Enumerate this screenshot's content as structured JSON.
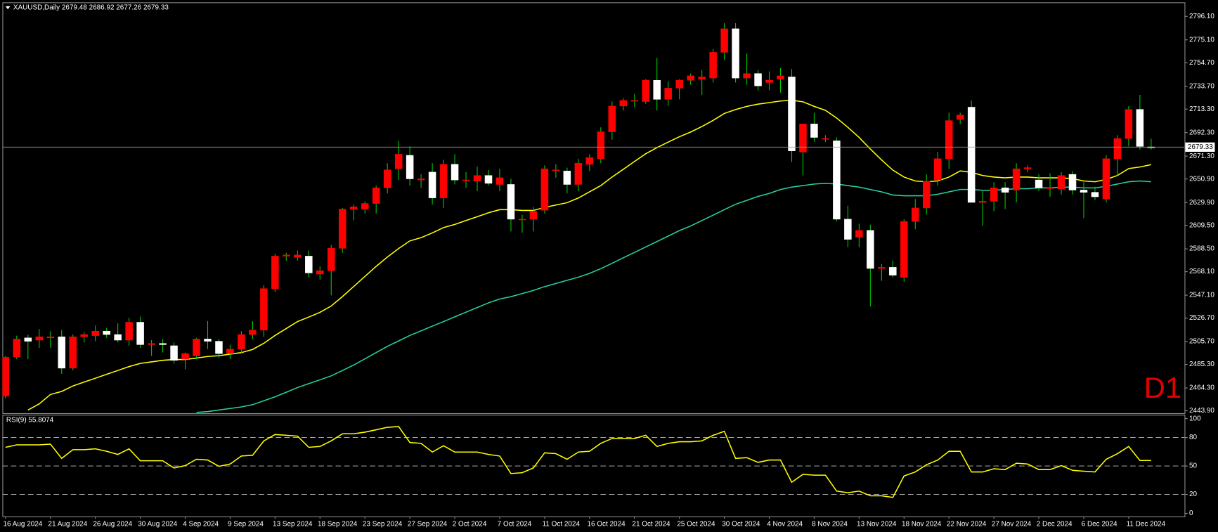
{
  "chart_data": [
    {
      "type": "candlestick",
      "title": "XAUUSD,Daily 2679.48 2686.92 2677.26 2679.33",
      "categories": [
        "16 Aug 2024",
        null,
        null,
        null,
        "21 Aug 2024",
        null,
        null,
        null,
        "26 Aug 2024",
        null,
        null,
        null,
        "30 Aug 2024",
        null,
        null,
        null,
        "4 Sep 2024",
        null,
        null,
        null,
        "9 Sep 2024",
        null,
        null,
        null,
        "13 Sep 2024",
        null,
        null,
        null,
        "18 Sep 2024",
        null,
        null,
        null,
        "23 Sep 2024",
        null,
        null,
        null,
        "27 Sep 2024",
        null,
        null,
        null,
        "2 Oct 2024",
        null,
        null,
        null,
        "7 Oct 2024",
        null,
        null,
        null,
        "11 Oct 2024",
        null,
        null,
        null,
        "16 Oct 2024",
        null,
        null,
        null,
        "21 Oct 2024",
        null,
        null,
        null,
        "25 Oct 2024",
        null,
        null,
        null,
        "30 Oct 2024",
        null,
        null,
        null,
        "4 Nov 2024",
        null,
        null,
        null,
        "8 Nov 2024",
        null,
        null,
        null,
        "13 Nov 2024",
        null,
        null,
        null,
        "18 Nov 2024",
        null,
        null,
        null,
        "22 Nov 2024",
        null,
        null,
        null,
        "27 Nov 2024",
        null,
        null,
        null,
        "2 Dec 2024",
        null,
        null,
        null,
        "6 Dec 2024",
        null,
        null,
        null,
        "11 Dec 2024",
        null,
        null
      ],
      "open": [
        2457.1,
        2492,
        2509,
        2507,
        2509,
        2510,
        2482,
        2510,
        2511,
        2515,
        2512,
        2507,
        2523,
        2503,
        2504,
        2502,
        2490,
        2493,
        2508,
        2506,
        2495,
        2499,
        2512,
        2516,
        2553,
        2582,
        2581,
        2582,
        2566,
        2569,
        2589,
        2624,
        2624,
        2629,
        2643,
        2660,
        2672,
        2650,
        2657,
        2634,
        2664,
        2650,
        2649,
        2654,
        2646,
        2646,
        2615,
        2615,
        2623,
        2659,
        2658,
        2646,
        2664,
        2669,
        2693,
        2716,
        2721,
        2720,
        2739,
        2722,
        2732,
        2739,
        2740,
        2741,
        2764,
        2785,
        2741,
        2745,
        2737,
        2740,
        2742,
        2675,
        2700,
        2687,
        2685,
        2615,
        2599,
        2605,
        2571,
        2572,
        2563,
        2613,
        2625,
        2650,
        2669,
        2704,
        2715,
        2630,
        2631,
        2643,
        2641,
        2660,
        2650,
        2643,
        2642,
        2655,
        2641,
        2639,
        2633,
        2669,
        2687,
        2713,
        2679.48
      ],
      "high": [
        2493,
        2511,
        2512,
        2517,
        2515,
        2516,
        2512,
        2514,
        2520,
        2518,
        2522,
        2527,
        2528,
        2507,
        2508,
        2505,
        2496,
        2509,
        2524,
        2508,
        2503,
        2515,
        2524,
        2556,
        2584,
        2585,
        2587,
        2587,
        2573,
        2592,
        2625,
        2628,
        2631,
        2645,
        2665,
        2685,
        2680,
        2655,
        2665,
        2668,
        2673,
        2657,
        2662,
        2659,
        2660,
        2651,
        2619,
        2626,
        2663,
        2664,
        2661,
        2669,
        2673,
        2697,
        2720,
        2723,
        2727,
        2740,
        2759,
        2738,
        2740,
        2745,
        2748,
        2767,
        2790,
        2790,
        2763,
        2748,
        2747,
        2750,
        2749,
        2700,
        2710,
        2690,
        2688,
        2627,
        2611,
        2610,
        2575,
        2578,
        2615,
        2633,
        2655,
        2675,
        2710,
        2710,
        2721,
        2640,
        2648,
        2648,
        2665,
        2663,
        2655,
        2656,
        2657,
        2658,
        2648,
        2644,
        2672,
        2690,
        2716,
        2726,
        2686.92
      ],
      "low": [
        2455,
        2490,
        2490,
        2500,
        2500,
        2477,
        2480,
        2505,
        2506,
        2509,
        2505,
        2502,
        2500,
        2493,
        2496,
        2486,
        2481,
        2490,
        2499,
        2491,
        2490,
        2495,
        2508,
        2510,
        2550,
        2578,
        2578,
        2563,
        2561,
        2547,
        2585,
        2614,
        2620,
        2620,
        2638,
        2650,
        2645,
        2643,
        2628,
        2625,
        2646,
        2643,
        2640,
        2645,
        2640,
        2604,
        2603,
        2604,
        2620,
        2652,
        2638,
        2640,
        2658,
        2665,
        2686,
        2712,
        2715,
        2718,
        2712,
        2716,
        2722,
        2735,
        2726,
        2737,
        2757,
        2737,
        2735,
        2730,
        2730,
        2728,
        2666,
        2654,
        2684,
        2684,
        2613,
        2590,
        2590,
        2537,
        2560,
        2563,
        2559,
        2606,
        2619,
        2645,
        2660,
        2700,
        2630,
        2609,
        2622,
        2624,
        2630,
        2657,
        2640,
        2635,
        2637,
        2637,
        2616,
        2632,
        2630,
        2654,
        2680,
        2677,
        2677.26
      ],
      "close": [
        2491.7,
        2508,
        2506,
        2510,
        2510,
        2482,
        2510,
        2512,
        2515,
        2512,
        2507,
        2523,
        2503,
        2504,
        2503,
        2489,
        2495,
        2508,
        2506,
        2495,
        2499,
        2512,
        2516,
        2553,
        2582,
        2583,
        2583,
        2567,
        2569,
        2589,
        2624,
        2626,
        2629,
        2643,
        2659,
        2673,
        2651,
        2651,
        2634,
        2664,
        2650,
        2650,
        2654,
        2647,
        2652,
        2615,
        2615,
        2622,
        2660,
        2659,
        2646,
        2665,
        2670,
        2693,
        2716,
        2721,
        2721,
        2739,
        2722,
        2732,
        2739,
        2743,
        2742,
        2764,
        2785,
        2741,
        2745,
        2734,
        2739,
        2743,
        2676,
        2700,
        2688,
        2687,
        2615,
        2597,
        2605,
        2571,
        2572,
        2565,
        2613,
        2625,
        2649,
        2669,
        2703,
        2708,
        2630,
        2631,
        2643,
        2639,
        2660,
        2661,
        2643,
        2643,
        2654,
        2641,
        2639,
        2635,
        2669,
        2687,
        2713,
        2680,
        2679.33
      ],
      "up_color": "#ff0000",
      "down_color": "#ffffff",
      "wick_color": "#00c800",
      "lines": [
        {
          "color": "#ffff00",
          "values": [
            null,
            null,
            2444.6,
            2450.1,
            2458.5,
            2461.2,
            2466.1,
            2469.6,
            2473.0,
            2476.5,
            2479.9,
            2483.4,
            2486.2,
            2487.6,
            2489.0,
            2489.7,
            2489.7,
            2491.0,
            2492.4,
            2493.1,
            2494.5,
            2495.9,
            2498.7,
            2504.2,
            2511.2,
            2517.4,
            2523.6,
            2527.6,
            2531.8,
            2537.5,
            2545.9,
            2554.9,
            2563.9,
            2572.9,
            2581.2,
            2588.8,
            2595.6,
            2598.5,
            2602.7,
            2607.5,
            2610.3,
            2613.8,
            2617.2,
            2620.7,
            2623.5,
            2623.5,
            2622.8,
            2622.8,
            2625.5,
            2627.6,
            2629.7,
            2633.9,
            2639.4,
            2645.0,
            2652.6,
            2659.5,
            2666.5,
            2673.4,
            2678.9,
            2683.8,
            2688.6,
            2692.8,
            2697.7,
            2703.2,
            2709.4,
            2712.9,
            2715.7,
            2717.7,
            2719.1,
            2720.5,
            2721.2,
            2719.8,
            2715.7,
            2712.2,
            2705.3,
            2697.0,
            2688.0,
            2677.6,
            2667.9,
            2658.8,
            2652.6,
            2649.1,
            2648.4,
            2649.1,
            2652.6,
            2658.1,
            2656.8,
            2654.0,
            2652.6,
            2651.9,
            2652.6,
            2652.6,
            2651.9,
            2651.9,
            2651.9,
            2651.2,
            2649.1,
            2648.4,
            2650.5,
            2654.0,
            2660.2,
            2661.6,
            2663.7
          ]
        },
        {
          "color": "#26d1a4",
          "values": [
            null,
            null,
            null,
            null,
            null,
            null,
            null,
            null,
            null,
            null,
            null,
            null,
            null,
            null,
            null,
            null,
            null,
            2442.5,
            2443.2,
            2444.6,
            2446.0,
            2447.4,
            2449.4,
            2452.9,
            2456.4,
            2460.5,
            2464.7,
            2468.2,
            2471.6,
            2475.1,
            2479.9,
            2484.8,
            2490.3,
            2495.9,
            2501.5,
            2506.3,
            2511.2,
            2515.3,
            2519.5,
            2523.6,
            2527.8,
            2532.0,
            2536.1,
            2540.3,
            2543.7,
            2545.8,
            2548.6,
            2551.4,
            2554.8,
            2557.6,
            2560.4,
            2563.2,
            2566.6,
            2570.8,
            2575.6,
            2580.5,
            2585.3,
            2590.2,
            2595.0,
            2599.9,
            2604.8,
            2608.9,
            2613.8,
            2618.6,
            2623.5,
            2628.3,
            2631.8,
            2635.3,
            2638.0,
            2641.5,
            2643.6,
            2645.0,
            2646.4,
            2647.0,
            2646.4,
            2645.0,
            2643.6,
            2641.5,
            2639.4,
            2636.6,
            2635.9,
            2635.9,
            2635.9,
            2637.3,
            2639.4,
            2641.5,
            2641.5,
            2640.8,
            2640.8,
            2641.5,
            2642.2,
            2642.2,
            2642.9,
            2642.9,
            2643.6,
            2643.6,
            2642.9,
            2642.9,
            2644.3,
            2646.4,
            2648.4,
            2649.1,
            2648.4
          ]
        }
      ],
      "ylim": [
        2441.8,
        2808.6
      ],
      "yticks": [
        {
          "value": 2796.1,
          "label": "2796.10"
        },
        {
          "value": 2775.1,
          "label": "2775.10"
        },
        {
          "value": 2754.7,
          "label": "2754.70"
        },
        {
          "value": 2733.7,
          "label": "2733.70"
        },
        {
          "value": 2713.3,
          "label": "2713.30"
        },
        {
          "value": 2692.3,
          "label": "2692.30"
        },
        {
          "value": 2671.3,
          "label": "2671.30"
        },
        {
          "value": 2650.9,
          "label": "2650.90"
        },
        {
          "value": 2629.9,
          "label": "2629.90"
        },
        {
          "value": 2609.5,
          "label": "2609.50"
        },
        {
          "value": 2588.5,
          "label": "2588.50"
        },
        {
          "value": 2568.1,
          "label": "2568.10"
        },
        {
          "value": 2547.1,
          "label": "2547.10"
        },
        {
          "value": 2526.7,
          "label": "2526.70"
        },
        {
          "value": 2505.7,
          "label": "2505.70"
        },
        {
          "value": 2485.3,
          "label": "2485.30"
        },
        {
          "value": 2464.3,
          "label": "2464.30"
        },
        {
          "value": 2443.9,
          "label": "2443.90"
        }
      ],
      "price_line": 2679.33,
      "price_line_color": "#9a9a9a",
      "annotation": "D1",
      "annotation_color": "#e00000"
    },
    {
      "type": "line",
      "title": "RSI(9) 55.8074",
      "color": "#ffff00",
      "values": [
        69.7,
        72.3,
        72.3,
        72.3,
        73.1,
        58.0,
        67.2,
        67.2,
        68.1,
        65.5,
        62.2,
        68.1,
        55.5,
        55.5,
        55.5,
        47.9,
        50.4,
        57.1,
        56.3,
        49.6,
        52.1,
        60.5,
        61.3,
        76.5,
        83.2,
        82.4,
        81.5,
        69.7,
        70.6,
        76.5,
        84.0,
        84.0,
        85.7,
        88.2,
        90.8,
        91.6,
        74.8,
        73.9,
        64.7,
        71.4,
        64.7,
        64.7,
        64.7,
        62.2,
        60.5,
        42.0,
        42.9,
        47.9,
        63.9,
        63.0,
        57.1,
        64.7,
        65.5,
        73.9,
        79.0,
        79.0,
        79.0,
        82.4,
        70.6,
        73.9,
        75.6,
        75.6,
        76.5,
        82.4,
        86.6,
        58.0,
        58.8,
        53.8,
        56.3,
        56.3,
        32.8,
        41.2,
        40.3,
        40.3,
        23.5,
        21.8,
        23.5,
        18.5,
        18.5,
        16.8,
        39.5,
        43.7,
        51.3,
        56.3,
        65.5,
        65.5,
        43.7,
        43.7,
        47.1,
        46.2,
        52.9,
        52.1,
        46.2,
        46.2,
        50.4,
        45.4,
        44.5,
        43.7,
        57.1,
        63.0,
        70.6,
        55.8,
        55.8074
      ],
      "ylim": [
        0,
        100
      ],
      "yticks": [
        100,
        80,
        50,
        20,
        0
      ],
      "levels": [
        80,
        50,
        20
      ]
    }
  ]
}
